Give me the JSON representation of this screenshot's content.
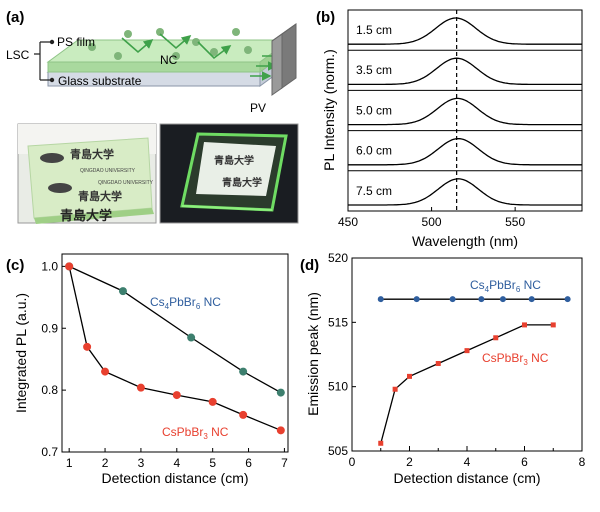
{
  "panels": {
    "a": {
      "label": "(a)",
      "lsc": "LSC",
      "ps_film": "PS film",
      "glass": "Glass substrate",
      "nc": "NC",
      "pv": "PV",
      "photo_text_cn": "青島大学",
      "photo_text_en": "QINGDAO UNIVERSITY"
    },
    "b": {
      "label": "(b)"
    },
    "c": {
      "label": "(c)"
    },
    "d": {
      "label": "(d)"
    }
  },
  "colors": {
    "cs4": "#3d7f6e",
    "cspb": "#e8402f",
    "cs4_label": "#2f5e9e",
    "cspb_label": "#e8402f",
    "film": "#bfe6b4",
    "dots": "#7fb57a",
    "arrow": "#3fa14a",
    "pv": "#8a8a8a"
  },
  "chart_data": [
    {
      "panel": "b",
      "type": "line",
      "xlabel": "Wavelength (nm)",
      "ylabel": "PL Intensity (norm.)",
      "xlim": [
        450,
        590
      ],
      "xticks": [
        450,
        500,
        550
      ],
      "peak_line": 515,
      "series": [
        {
          "name": "1.5 cm",
          "center": 514.5,
          "width": 12
        },
        {
          "name": "3.5 cm",
          "center": 515.0,
          "width": 12
        },
        {
          "name": "5.0 cm",
          "center": 515.5,
          "width": 12
        },
        {
          "name": "6.0 cm",
          "center": 516.0,
          "width": 12
        },
        {
          "name": "7.5 cm",
          "center": 516.0,
          "width": 12
        }
      ]
    },
    {
      "panel": "c",
      "type": "line",
      "xlabel": "Detection distance (cm)",
      "ylabel": "Integrated PL (a.u.)",
      "xlim": [
        0.8,
        7.1
      ],
      "ylim": [
        0.7,
        1.02
      ],
      "xticks": [
        1,
        2,
        3,
        4,
        5,
        6,
        7
      ],
      "yticks": [
        0.7,
        0.8,
        0.9,
        1.0
      ],
      "series": [
        {
          "name": "Cs",
          "name_sub1": "4",
          "name_mid": "PbBr",
          "name_sub2": "6",
          "name_tail": " NC",
          "key": "cs4",
          "x": [
            1,
            2.5,
            4.4,
            5.85,
            6.9
          ],
          "y": [
            1.0,
            0.96,
            0.885,
            0.83,
            0.796
          ]
        },
        {
          "name": "CsPbBr",
          "name_sub1": "3",
          "name_mid": "",
          "name_sub2": "",
          "name_tail": " NC",
          "key": "cspb",
          "x": [
            1,
            1.5,
            2,
            3,
            4,
            5,
            5.85,
            6.9
          ],
          "y": [
            1.0,
            0.87,
            0.83,
            0.804,
            0.792,
            0.781,
            0.76,
            0.735
          ]
        }
      ]
    },
    {
      "panel": "d",
      "type": "line",
      "xlabel": "Detection distance (cm)",
      "ylabel": "Emission peak (nm)",
      "xlim": [
        0,
        8
      ],
      "ylim": [
        505,
        520
      ],
      "xticks": [
        0,
        1,
        2,
        3,
        4,
        5,
        6,
        7,
        8
      ],
      "xtick_labels": [
        0,
        2,
        4,
        6,
        8
      ],
      "yticks": [
        505,
        510,
        515,
        520
      ],
      "series": [
        {
          "name": "Cs",
          "name_sub1": "4",
          "name_mid": "PbBr",
          "name_sub2": "6",
          "name_tail": " NC",
          "key": "cs4",
          "x": [
            1,
            2.25,
            3.5,
            4.5,
            5.25,
            6.25,
            7.5
          ],
          "y": [
            516.8,
            516.8,
            516.8,
            516.8,
            516.8,
            516.8,
            516.8
          ]
        },
        {
          "name": "CsPbBr",
          "name_sub1": "3",
          "name_mid": "",
          "name_sub2": "",
          "name_tail": " NC",
          "key": "cspb",
          "x": [
            1,
            1.5,
            2,
            3,
            4,
            5,
            6,
            7
          ],
          "y": [
            505.6,
            509.8,
            510.8,
            511.8,
            512.8,
            513.8,
            514.8,
            514.8
          ]
        }
      ]
    }
  ]
}
